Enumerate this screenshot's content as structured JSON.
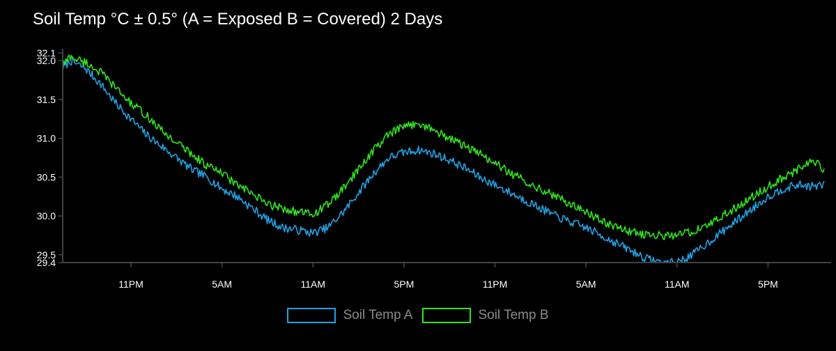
{
  "colors": {
    "background": "#000000",
    "series_a": "#1fa3e6",
    "series_b": "#2fe61c",
    "axis": "#444444",
    "text": "#ffffff",
    "legend_text": "#8a8a8a"
  },
  "chart_data": {
    "type": "line",
    "title": "Soil Temp °C ± 0.5° (A = Exposed B = Covered) 2 Days",
    "xlabel": "",
    "ylabel": "",
    "ylim": [
      29.4,
      32.1
    ],
    "y_ticks": [
      "32.1",
      "32.0",
      "31.5",
      "31.0",
      "30.5",
      "30.0",
      "29.5",
      "29.4"
    ],
    "x_ticks": [
      "11PM",
      "5AM",
      "11AM",
      "5PM",
      "11PM",
      "5AM",
      "11AM",
      "5PM"
    ],
    "x_hours_range": [
      -4.5,
      45.7
    ],
    "x_tick_hours": [
      0,
      6,
      12,
      18,
      24,
      30,
      36,
      42
    ],
    "grid": false,
    "legend_position": "bottom-center",
    "series": [
      {
        "name": "Soil Temp A",
        "color": "#1fa3e6",
        "x": [
          -4.5,
          -4,
          -3,
          -2,
          -1,
          0,
          1,
          2,
          3,
          4,
          5,
          6,
          7,
          8,
          9,
          10,
          11,
          12,
          13,
          14,
          15,
          16,
          17,
          18,
          19,
          20,
          21,
          22,
          23,
          24,
          25,
          26,
          27,
          28,
          29,
          30,
          31,
          32,
          33,
          34,
          35,
          36,
          37,
          38,
          39,
          40,
          41,
          42,
          43,
          44,
          45,
          45.7
        ],
        "y": [
          31.9,
          32.0,
          31.9,
          31.7,
          31.45,
          31.25,
          31.05,
          30.9,
          30.75,
          30.6,
          30.5,
          30.35,
          30.25,
          30.1,
          29.95,
          29.85,
          29.82,
          29.78,
          29.85,
          30.05,
          30.3,
          30.55,
          30.75,
          30.82,
          30.85,
          30.8,
          30.72,
          30.62,
          30.5,
          30.4,
          30.3,
          30.2,
          30.1,
          30.0,
          29.92,
          29.85,
          29.75,
          29.65,
          29.55,
          29.45,
          29.4,
          29.4,
          29.5,
          29.65,
          29.8,
          29.95,
          30.1,
          30.25,
          30.35,
          30.4,
          30.38,
          30.4
        ]
      },
      {
        "name": "Soil Temp B",
        "color": "#2fe61c",
        "x": [
          -4.5,
          -4,
          -3,
          -2,
          -1,
          0,
          1,
          2,
          3,
          4,
          5,
          6,
          7,
          8,
          9,
          10,
          11,
          12,
          13,
          14,
          15,
          16,
          17,
          18,
          19,
          20,
          21,
          22,
          23,
          24,
          25,
          26,
          27,
          28,
          29,
          30,
          31,
          32,
          33,
          34,
          35,
          36,
          37,
          38,
          39,
          40,
          41,
          42,
          43,
          44,
          45,
          45.7
        ],
        "y": [
          31.95,
          32.05,
          31.98,
          31.85,
          31.65,
          31.45,
          31.3,
          31.1,
          30.95,
          30.8,
          30.65,
          30.55,
          30.4,
          30.28,
          30.15,
          30.1,
          30.05,
          30.02,
          30.15,
          30.35,
          30.6,
          30.85,
          31.05,
          31.15,
          31.2,
          31.1,
          31.0,
          30.9,
          30.8,
          30.68,
          30.55,
          30.45,
          30.35,
          30.25,
          30.15,
          30.05,
          29.95,
          29.85,
          29.8,
          29.75,
          29.75,
          29.75,
          29.8,
          29.88,
          30.0,
          30.12,
          30.25,
          30.38,
          30.5,
          30.6,
          30.72,
          30.6
        ]
      }
    ]
  }
}
